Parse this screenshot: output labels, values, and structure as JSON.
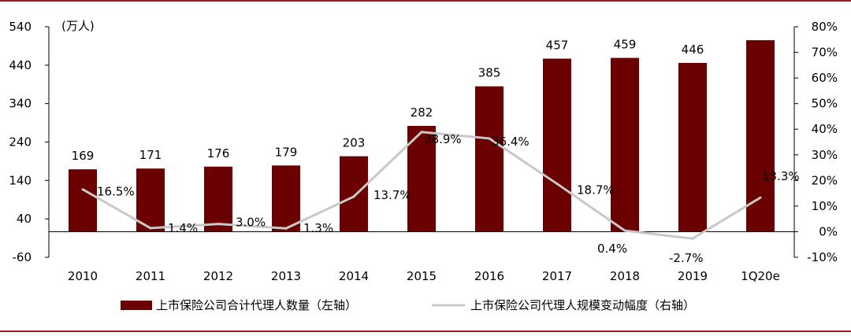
{
  "chart_data": {
    "type": "bar+line",
    "unit_label": "(万人)",
    "categories": [
      "2010",
      "2011",
      "2012",
      "2013",
      "2014",
      "2015",
      "2016",
      "2017",
      "2018",
      "2019",
      "1Q20e"
    ],
    "series": [
      {
        "name": "上市保险公司合计代理人数量（左轴）",
        "type": "bar",
        "axis": "left",
        "color": "#6b0000",
        "values": [
          169,
          171,
          176,
          179,
          203,
          282,
          385,
          457,
          459,
          446,
          505
        ],
        "labels": [
          "169",
          "171",
          "176",
          "179",
          "203",
          "282",
          "385",
          "457",
          "459",
          "446",
          ""
        ]
      },
      {
        "name": "上市保险公司代理人规模变动幅度（右轴）",
        "type": "line",
        "axis": "right",
        "color": "#c8c8c8",
        "values": [
          16.5,
          1.4,
          3.0,
          1.3,
          13.7,
          38.9,
          36.4,
          18.7,
          0.4,
          -2.7,
          13.3
        ],
        "labels": [
          "16.5%",
          "1.4%",
          "3.0%",
          "1.3%",
          "13.7%",
          "38.9%",
          "36.4%",
          "18.7%",
          "0.4%",
          "-2.7%",
          "13.3%"
        ]
      }
    ],
    "y_left": {
      "ticks": [
        -60,
        40,
        140,
        240,
        340,
        440,
        540
      ],
      "ylim": [
        -60,
        540
      ]
    },
    "y_right": {
      "ticks": [
        "-10%",
        "0%",
        "10%",
        "20%",
        "30%",
        "40%",
        "50%",
        "60%",
        "70%",
        "80%"
      ],
      "ylim": [
        -10,
        80
      ]
    },
    "grid": false,
    "legend_position": "bottom"
  }
}
